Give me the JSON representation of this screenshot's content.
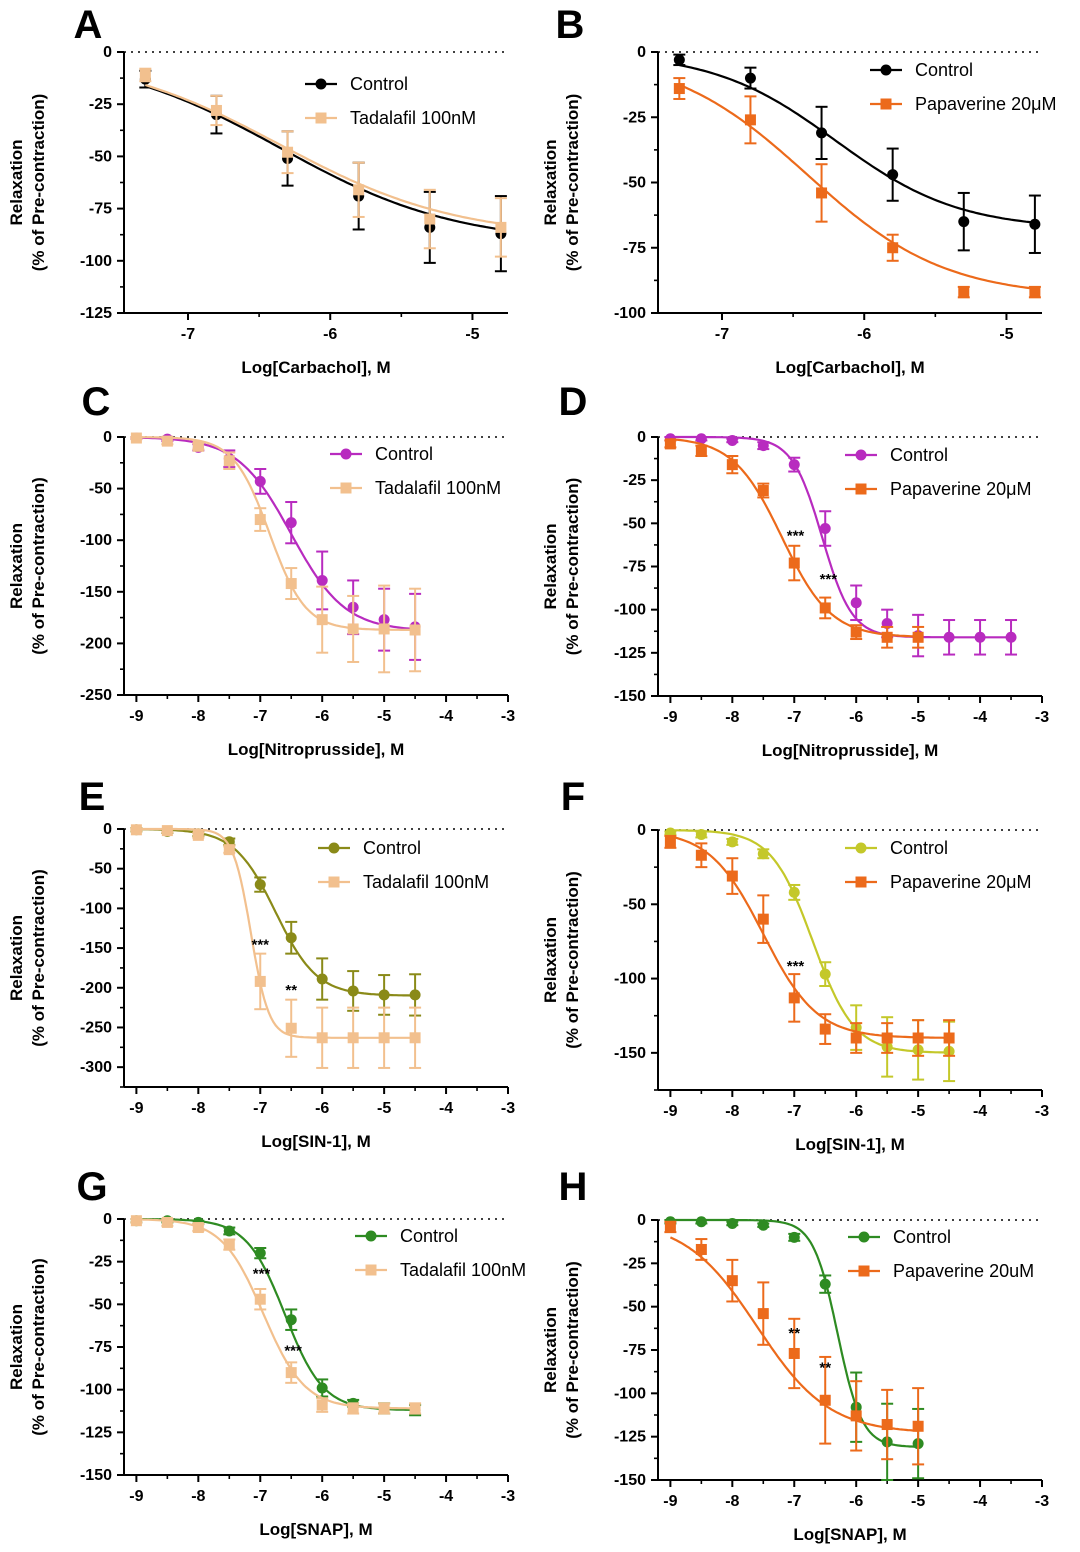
{
  "chart_data": [
    {
      "panel": "A",
      "type": "line",
      "xlabel": "Log[Carbachol], M",
      "ylabel": [
        "Relaxation",
        "(% of Pre-contraction)"
      ],
      "xlim": [
        -7.45,
        -4.75
      ],
      "ylim": [
        -125,
        0
      ],
      "xticks": [
        -7,
        -6,
        -5
      ],
      "yticks": [
        0,
        -25,
        -50,
        -75,
        -100,
        -125
      ],
      "series": [
        {
          "name": "Control",
          "color": "#000000",
          "marker": "circle",
          "x": [
            -7.3,
            -6.8,
            -6.3,
            -5.8,
            -5.3,
            -4.8
          ],
          "y": [
            -13,
            -30,
            -51,
            -69,
            -84,
            -87
          ],
          "err": [
            4,
            9,
            13,
            16,
            17,
            18
          ],
          "fit": {
            "top": 0,
            "bottom": -92,
            "logec50": -6.35,
            "hill": 0.7
          }
        },
        {
          "name": "Tadalafil 100nM",
          "color": "#f2c08e",
          "marker": "square",
          "x": [
            -7.3,
            -6.8,
            -6.3,
            -5.8,
            -5.3,
            -4.8
          ],
          "y": [
            -11,
            -28,
            -48,
            -66,
            -80,
            -84
          ],
          "err": [
            3,
            7,
            10,
            13,
            14,
            14
          ],
          "fit": {
            "top": 0,
            "bottom": -89,
            "logec50": -6.35,
            "hill": 0.7
          }
        }
      ],
      "annotations": []
    },
    {
      "panel": "B",
      "type": "line",
      "xlabel": "Log[Carbachol], M",
      "ylabel": [
        "Relaxation",
        "(% of Pre-contraction)"
      ],
      "xlim": [
        -7.45,
        -4.75
      ],
      "ylim": [
        -100,
        0
      ],
      "xticks": [
        -7,
        -6,
        -5
      ],
      "yticks": [
        0,
        -25,
        -50,
        -75,
        -100
      ],
      "series": [
        {
          "name": "Control",
          "color": "#000000",
          "marker": "circle",
          "x": [
            -7.3,
            -6.8,
            -6.3,
            -5.8,
            -5.3,
            -4.8
          ],
          "y": [
            -3,
            -10,
            -31,
            -47,
            -65,
            -66
          ],
          "err": [
            2,
            4,
            10,
            10,
            11,
            11
          ],
          "fit": {
            "top": 0,
            "bottom": -68,
            "logec50": -6.2,
            "hill": 1.0
          }
        },
        {
          "name": "Papaverine 20μM",
          "color": "#ec6a1b",
          "marker": "square",
          "x": [
            -7.3,
            -6.8,
            -6.3,
            -5.8,
            -5.3,
            -4.8
          ],
          "y": [
            -14,
            -26,
            -54,
            -75,
            -92,
            -92
          ],
          "err": [
            4,
            9,
            11,
            5,
            2,
            2
          ],
          "fit": {
            "top": 0,
            "bottom": -94,
            "logec50": -6.4,
            "hill": 0.9
          }
        }
      ],
      "annotations": []
    },
    {
      "panel": "C",
      "type": "line",
      "xlabel": "Log[Nitroprusside], M",
      "ylabel": [
        "Relaxation",
        "(% of Pre-contraction)"
      ],
      "xlim": [
        -9.2,
        -3
      ],
      "ylim": [
        -250,
        0
      ],
      "xticks": [
        -9,
        -8,
        -7,
        -6,
        -5,
        -4,
        -3
      ],
      "yticks": [
        0,
        -50,
        -100,
        -150,
        -200,
        -250
      ],
      "series": [
        {
          "name": "Control",
          "color": "#b82bbf",
          "marker": "circle",
          "x": [
            -9,
            -8.5,
            -8,
            -7.5,
            -7,
            -6.5,
            -6,
            -5.5,
            -5,
            -4.5
          ],
          "y": [
            -1,
            -2,
            -10,
            -21,
            -43,
            -83,
            -139,
            -165,
            -177,
            -184
          ],
          "err": [
            1,
            2,
            3,
            8,
            12,
            20,
            28,
            26,
            30,
            32
          ],
          "fit": {
            "top": 0,
            "bottom": -188,
            "logec50": -6.5,
            "hill": 1.0
          }
        },
        {
          "name": "Tadalafil 100nM",
          "color": "#f2c08e",
          "marker": "square",
          "x": [
            -9,
            -8.5,
            -8,
            -7.5,
            -7,
            -6.5,
            -6,
            -5.5,
            -5,
            -4.5
          ],
          "y": [
            -1,
            -4,
            -9,
            -23,
            -80,
            -142,
            -177,
            -186,
            -186,
            -187
          ],
          "err": [
            1,
            3,
            3,
            8,
            11,
            15,
            32,
            32,
            42,
            40
          ],
          "fit": {
            "top": 0,
            "bottom": -187,
            "logec50": -6.85,
            "hill": 1.5
          }
        }
      ],
      "annotations": []
    },
    {
      "panel": "D",
      "type": "line",
      "xlabel": "Log[Nitroprusside], M",
      "ylabel": [
        "Relaxation",
        "(% of Pre-contraction)"
      ],
      "xlim": [
        -9.2,
        -3
      ],
      "ylim": [
        -150,
        0
      ],
      "xticks": [
        -9,
        -8,
        -7,
        -6,
        -5,
        -4,
        -3
      ],
      "yticks": [
        0,
        -25,
        -50,
        -75,
        -100,
        -125,
        -150
      ],
      "series": [
        {
          "name": "Control",
          "color": "#b82bbf",
          "marker": "circle",
          "x": [
            -9,
            -8.5,
            -8,
            -7.5,
            -7,
            -6.5,
            -6,
            -5.5,
            -5,
            -4.5,
            -4,
            -3.5
          ],
          "y": [
            -1,
            -1,
            -2,
            -5,
            -16,
            -53,
            -96,
            -108,
            -115,
            -116,
            -116,
            -116
          ],
          "err": [
            1,
            1,
            1,
            2,
            4,
            10,
            10,
            8,
            12,
            10,
            10,
            10
          ],
          "fit": {
            "top": 0,
            "bottom": -116,
            "logec50": -6.55,
            "hill": 1.8
          }
        },
        {
          "name": "Papaverine 20μM",
          "color": "#ec6a1b",
          "marker": "square",
          "x": [
            -9,
            -8.5,
            -8,
            -7.5,
            -7,
            -6.5,
            -6,
            -5.5,
            -5
          ],
          "y": [
            -4,
            -8,
            -16,
            -31,
            -73,
            -99,
            -113,
            -116,
            -116
          ],
          "err": [
            2,
            3,
            5,
            4,
            10,
            6,
            4,
            6,
            6
          ],
          "fit": {
            "top": 0,
            "bottom": -116,
            "logec50": -7.2,
            "hill": 1.1
          }
        }
      ],
      "annotations": [
        {
          "x": -6.98,
          "y": -60,
          "text": "***"
        },
        {
          "x": -6.45,
          "y": -85,
          "text": "***"
        }
      ]
    },
    {
      "panel": "E",
      "type": "line",
      "xlabel": "Log[SIN-1], M",
      "ylabel": [
        "Relaxation",
        "(% of Pre-contraction)"
      ],
      "xlim": [
        -9.2,
        -3
      ],
      "ylim": [
        -325,
        0
      ],
      "xticks": [
        -9,
        -8,
        -7,
        -6,
        -5,
        -4,
        -3
      ],
      "yticks": [
        0,
        -50,
        -100,
        -150,
        -200,
        -250,
        -300
      ],
      "series": [
        {
          "name": "Control",
          "color": "#8a8a18",
          "marker": "circle",
          "x": [
            -9,
            -8.5,
            -8,
            -7.5,
            -7,
            -6.5,
            -6,
            -5.5,
            -5,
            -4.5
          ],
          "y": [
            -1,
            -3,
            -6,
            -16,
            -70,
            -137,
            -189,
            -204,
            -209,
            -209
          ],
          "err": [
            2,
            2,
            3,
            4,
            9,
            20,
            26,
            25,
            25,
            26
          ],
          "fit": {
            "top": 0,
            "bottom": -210,
            "logec50": -6.75,
            "hill": 1.3
          }
        },
        {
          "name": "Tadalafil 100nM",
          "color": "#f2c08e",
          "marker": "square",
          "x": [
            -9,
            -8.5,
            -8,
            -7.5,
            -7,
            -6.5,
            -6,
            -5.5,
            -5,
            -4.5
          ],
          "y": [
            -1,
            -2,
            -8,
            -26,
            -192,
            -251,
            -263,
            -263,
            -263,
            -263
          ],
          "err": [
            1,
            2,
            3,
            4,
            35,
            36,
            38,
            38,
            38,
            38
          ],
          "fit": {
            "top": 0,
            "bottom": -263,
            "logec50": -7.15,
            "hill": 3.0
          }
        }
      ],
      "annotations": [
        {
          "x": -7.0,
          "y": -152,
          "text": "***"
        },
        {
          "x": -6.5,
          "y": -209,
          "text": "**"
        }
      ]
    },
    {
      "panel": "F",
      "type": "line",
      "xlabel": "Log[SIN-1], M",
      "ylabel": [
        "Relaxation",
        "(% of Pre-contraction)"
      ],
      "xlim": [
        -9.2,
        -3
      ],
      "ylim": [
        -175,
        0
      ],
      "xticks": [
        -9,
        -8,
        -7,
        -6,
        -5,
        -4,
        -3
      ],
      "yticks": [
        0,
        -50,
        -100,
        -150
      ],
      "series": [
        {
          "name": "Control",
          "color": "#c4c82a",
          "marker": "circle",
          "x": [
            -9,
            -8.5,
            -8,
            -7.5,
            -7,
            -6.5,
            -6,
            -5.5,
            -5,
            -4.5
          ],
          "y": [
            -2,
            -3,
            -8,
            -16,
            -42,
            -97,
            -133,
            -146,
            -148,
            -149
          ],
          "err": [
            1,
            2,
            2,
            3,
            5,
            8,
            15,
            20,
            20,
            20
          ],
          "fit": {
            "top": 0,
            "bottom": -150,
            "logec50": -6.7,
            "hill": 1.3
          }
        },
        {
          "name": "Papaverine 20μM",
          "color": "#ec6a1b",
          "marker": "square",
          "x": [
            -9,
            -8.5,
            -8,
            -7.5,
            -7,
            -6.5,
            -6,
            -5.5,
            -5,
            -4.5
          ],
          "y": [
            -8,
            -17,
            -31,
            -60,
            -113,
            -134,
            -140,
            -140,
            -140,
            -140
          ],
          "err": [
            4,
            8,
            12,
            16,
            16,
            10,
            10,
            10,
            12,
            12
          ],
          "fit": {
            "top": 0,
            "bottom": -140,
            "logec50": -7.5,
            "hill": 1.0
          }
        }
      ],
      "annotations": [
        {
          "x": -6.98,
          "y": -95,
          "text": "***"
        }
      ]
    },
    {
      "panel": "G",
      "type": "line",
      "xlabel": "Log[SNAP], M",
      "ylabel": [
        "Relaxation",
        "(% of Pre-contraction)"
      ],
      "xlim": [
        -9.2,
        -3
      ],
      "ylim": [
        -150,
        0
      ],
      "xticks": [
        -9,
        -8,
        -7,
        -6,
        -5,
        -4,
        -3
      ],
      "yticks": [
        0,
        -25,
        -50,
        -75,
        -100,
        -125,
        -150
      ],
      "series": [
        {
          "name": "Control",
          "color": "#2e8b22",
          "marker": "circle",
          "x": [
            -9,
            -8.5,
            -8,
            -7.5,
            -7,
            -6.5,
            -6,
            -5.5,
            -5,
            -4.5
          ],
          "y": [
            -1,
            -1,
            -2,
            -7,
            -20,
            -59,
            -99,
            -108,
            -111,
            -112
          ],
          "err": [
            1,
            1,
            1,
            2,
            3,
            6,
            5,
            2,
            3,
            3
          ],
          "fit": {
            "top": 0,
            "bottom": -112,
            "logec50": -6.6,
            "hill": 1.4
          }
        },
        {
          "name": "Tadalafil 100nM",
          "color": "#f2c08e",
          "marker": "square",
          "x": [
            -9,
            -8.5,
            -8,
            -7.5,
            -7,
            -6.5,
            -6,
            -5.5,
            -5,
            -4.5
          ],
          "y": [
            -1,
            -2,
            -5,
            -15,
            -47,
            -90,
            -109,
            -111,
            -111,
            -111
          ],
          "err": [
            1,
            2,
            2,
            3,
            6,
            6,
            4,
            3,
            3,
            3
          ],
          "fit": {
            "top": 0,
            "bottom": -111,
            "logec50": -6.95,
            "hill": 1.3
          }
        }
      ],
      "annotations": [
        {
          "x": -6.98,
          "y": -35,
          "text": "***"
        },
        {
          "x": -6.47,
          "y": -80,
          "text": "***"
        }
      ]
    },
    {
      "panel": "H",
      "type": "line",
      "xlabel": "Log[SNAP], M",
      "ylabel": [
        "Relaxation",
        "(% of Pre-contraction)"
      ],
      "xlim": [
        -9.2,
        -3
      ],
      "ylim": [
        -150,
        0
      ],
      "xticks": [
        -9,
        -8,
        -7,
        -6,
        -5,
        -4,
        -3
      ],
      "yticks": [
        0,
        -25,
        -50,
        -75,
        -100,
        -125,
        -150
      ],
      "series": [
        {
          "name": "Control",
          "color": "#2e8b22",
          "marker": "circle",
          "x": [
            -9,
            -8.5,
            -8,
            -7.5,
            -7,
            -6.5,
            -6,
            -5.5,
            -5
          ],
          "y": [
            -1,
            -1,
            -2,
            -3,
            -10,
            -37,
            -108,
            -128,
            -129
          ],
          "err": [
            1,
            1,
            1,
            1,
            2,
            5,
            20,
            22,
            20
          ],
          "fit": {
            "top": 0,
            "bottom": -131,
            "logec50": -6.3,
            "hill": 2.2
          }
        },
        {
          "name": "Papaverine 20uM",
          "color": "#ec6a1b",
          "marker": "square",
          "x": [
            -9,
            -8.5,
            -8,
            -7.5,
            -7,
            -6.5,
            -6,
            -5.5,
            -5
          ],
          "y": [
            -4,
            -17,
            -35,
            -54,
            -77,
            -104,
            -113,
            -118,
            -119
          ],
          "err": [
            3,
            6,
            12,
            18,
            20,
            25,
            20,
            20,
            22
          ],
          "fit": {
            "top": 0,
            "bottom": -123,
            "logec50": -7.6,
            "hill": 0.75
          }
        }
      ],
      "annotations": [
        {
          "x": -7.0,
          "y": -68,
          "text": "**"
        },
        {
          "x": -6.5,
          "y": -88,
          "text": "**"
        }
      ]
    }
  ]
}
